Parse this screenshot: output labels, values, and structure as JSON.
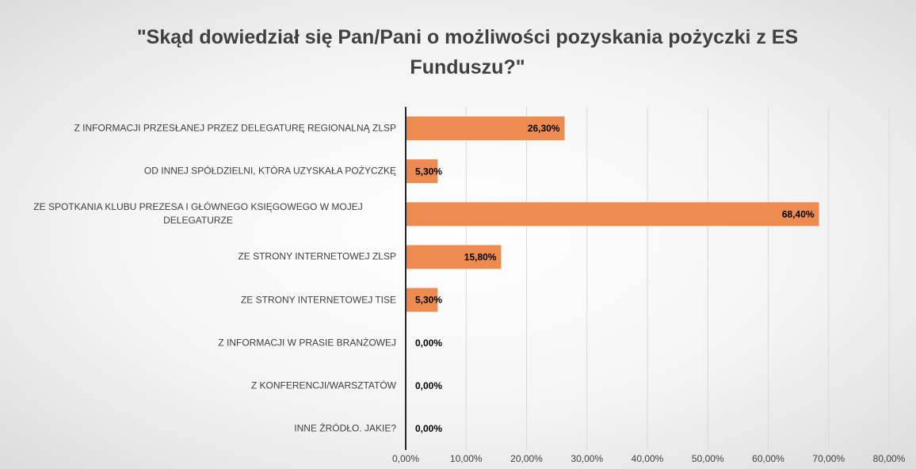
{
  "chart_data": {
    "type": "barh",
    "title": "\"Skąd dowiedział się Pan/Pani o możliwości pozyskania pożyczki z ES Funduszu?\"",
    "categories": [
      "Z INFORMACJI PRZESŁANEJ PRZEZ DELEGATURĘ REGIONALNĄ ZLSP",
      "OD INNEJ SPÓŁDZIELNI, KTÓRA UZYSKAŁA POŻYCZKĘ",
      "ZE SPOTKANIA KLUBU PREZESA I GŁÓWNEGO KSIĘGOWEGO W MOJEJ DELEGATURZE",
      "ZE STRONY INTERNETOWEJ ZLSP",
      "ZE STRONY INTERNETOWEJ TISE",
      "Z INFORMACJI W PRASIE BRANŻOWEJ",
      "Z KONFERENCJI/WARSZTATÓW",
      "INNE ŹRÓDŁO. JAKIE?"
    ],
    "values": [
      26.3,
      5.3,
      68.4,
      15.8,
      5.3,
      0,
      0,
      0
    ],
    "value_labels": [
      "26,30%",
      "5,30%",
      "68,40%",
      "15,80%",
      "5,30%",
      "0,00%",
      "0,00%",
      "0,00%"
    ],
    "color": "#ed8b50",
    "xlim": [
      0,
      80
    ],
    "xticks": [
      {
        "value": 0,
        "label": "0,00%"
      },
      {
        "value": 10,
        "label": "10,00%"
      },
      {
        "value": 20,
        "label": "20,00%"
      },
      {
        "value": 30,
        "label": "30,00%"
      },
      {
        "value": 40,
        "label": "40,00%"
      },
      {
        "value": 50,
        "label": "50,00%"
      },
      {
        "value": 60,
        "label": "60,00%"
      },
      {
        "value": 70,
        "label": "70,00%"
      },
      {
        "value": 80,
        "label": "80,00%"
      }
    ],
    "grid": true
  }
}
